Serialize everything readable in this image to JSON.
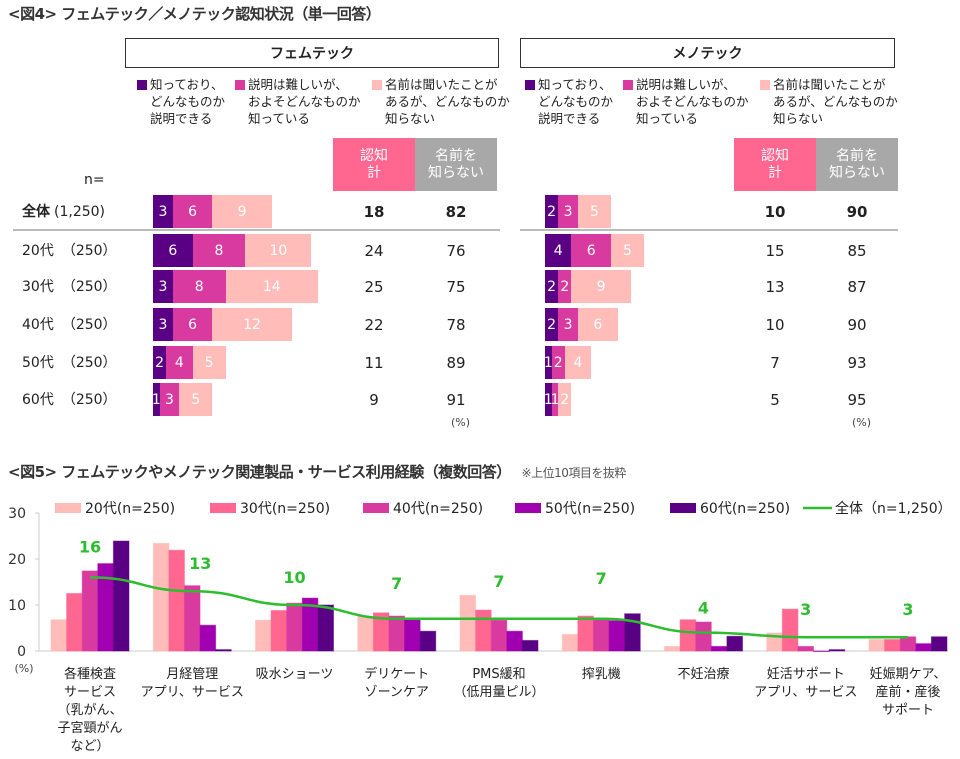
{
  "fig4": {
    "title": "<図4> フェムテック／メノテック認知状況（単一回答）",
    "n_label": "n=",
    "pct_unit": "(%)",
    "column_heads": {
      "recognized_total": "認知\n計",
      "unknown": "名前を\n知らない"
    },
    "legend": [
      {
        "label": "知っており、\nどんなものか\n説明できる",
        "color": "#5a0084"
      },
      {
        "label": "説明は難しいが、\nおよそどんなものか\n知っている",
        "color": "#d93aa0"
      },
      {
        "label": "名前は聞いたことが\nあるが、どんなものか\n知らない",
        "color": "#ffbcb8"
      }
    ],
    "colors": {
      "recognized_head": "#ff6690",
      "unknown_head": "#a8a8a8"
    },
    "rows": [
      {
        "label": "全体",
        "n": "(1,250)",
        "bold": true
      },
      {
        "label": "20代",
        "n": "（250）",
        "bold": false
      },
      {
        "label": "30代",
        "n": "（250）",
        "bold": false
      },
      {
        "label": "40代",
        "n": "（250）",
        "bold": false
      },
      {
        "label": "50代",
        "n": "（250）",
        "bold": false
      },
      {
        "label": "60代",
        "n": "（250）",
        "bold": false
      }
    ],
    "groups": [
      {
        "name": "フェムテック",
        "stacks": [
          [
            3,
            6,
            9
          ],
          [
            6,
            8,
            10
          ],
          [
            3,
            8,
            14
          ],
          [
            3,
            6,
            12
          ],
          [
            2,
            4,
            5
          ],
          [
            1,
            3,
            5
          ]
        ],
        "recognized_total": [
          18,
          24,
          25,
          22,
          11,
          9
        ],
        "unknown": [
          82,
          76,
          75,
          78,
          89,
          91
        ]
      },
      {
        "name": "メノテック",
        "stacks": [
          [
            2,
            3,
            5
          ],
          [
            4,
            6,
            5
          ],
          [
            2,
            2,
            9
          ],
          [
            2,
            3,
            6
          ],
          [
            1,
            2,
            4
          ],
          [
            1,
            1,
            2
          ]
        ],
        "recognized_total": [
          10,
          15,
          13,
          10,
          7,
          5
        ],
        "unknown": [
          90,
          85,
          87,
          90,
          93,
          95
        ]
      }
    ]
  },
  "fig5": {
    "title": "<図5> フェムテックやメノテック関連製品・サービス利用経験（複数回答）",
    "note": "※上位10項目を抜粋",
    "pct_unit": "(%)"
  },
  "chart_data": {
    "type": "bar",
    "title": "<図5> フェムテックやメノテック関連製品・サービス利用経験（複数回答）",
    "subtitle": "※上位10項目を抜粋",
    "xlabel": "",
    "ylabel": "(%)",
    "ylim": [
      0,
      30
    ],
    "yticks": [
      0,
      10,
      20,
      30
    ],
    "grid": false,
    "legend_position": "top",
    "categories": [
      "各種検査\nサービス\n（乳がん、\n子宮頸がん\nなど）",
      "月経管理\nアプリ、サービス",
      "吸水ショーツ",
      "デリケート\nゾーンケア",
      "PMS緩和\n（低用量ピル）",
      "搾乳機",
      "不妊治療",
      "妊活サポート\nアプリ、サービス",
      "妊娠期ケア、\n産前・産後\nサポート"
    ],
    "series": [
      {
        "name": "20代(n=250)",
        "type": "bar",
        "color": "#ffbcb8",
        "values": [
          6.8,
          23.4,
          6.7,
          7.5,
          12.1,
          3.6,
          1.0,
          3.9,
          2.5
        ]
      },
      {
        "name": "30代(n=250)",
        "type": "bar",
        "color": "#ff6690",
        "values": [
          12.5,
          21.9,
          8.8,
          8.3,
          8.9,
          7.6,
          6.8,
          9.1,
          2.5
        ]
      },
      {
        "name": "40代(n=250)",
        "type": "bar",
        "color": "#d93aa0",
        "values": [
          17.4,
          14.2,
          10.4,
          7.6,
          6.7,
          7.1,
          6.3,
          1.0,
          3.1
        ]
      },
      {
        "name": "50代(n=250)",
        "type": "bar",
        "color": "#a000b0",
        "values": [
          19.0,
          5.6,
          11.5,
          6.8,
          4.3,
          6.6,
          1.0,
          0.0,
          1.6
        ]
      },
      {
        "name": "60代(n=250)",
        "type": "bar",
        "color": "#5a0084",
        "values": [
          23.9,
          0.3,
          10.0,
          4.3,
          2.3,
          8.1,
          3.2,
          0.3,
          3.1
        ]
      },
      {
        "name": "全体（n=1,250）",
        "type": "line",
        "color": "#2ebd2e",
        "values": [
          16,
          13,
          10,
          7,
          7,
          7,
          4,
          3,
          3
        ],
        "labels": [
          "16",
          "13",
          "10",
          "7",
          "7",
          "7",
          "4",
          "3",
          "3"
        ]
      }
    ]
  }
}
